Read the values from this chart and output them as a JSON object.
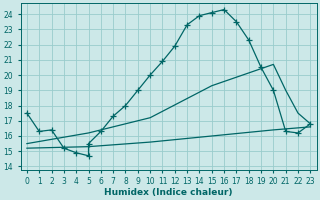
{
  "xlabel": "Humidex (Indice chaleur)",
  "bg_color": "#cce8e8",
  "grid_color": "#99cccc",
  "line_color": "#006666",
  "xlim": [
    -0.5,
    23.5
  ],
  "ylim": [
    13.8,
    24.7
  ],
  "yticks": [
    14,
    15,
    16,
    17,
    18,
    19,
    20,
    21,
    22,
    23,
    24
  ],
  "xticks": [
    0,
    1,
    2,
    3,
    4,
    5,
    6,
    7,
    8,
    9,
    10,
    11,
    12,
    13,
    14,
    15,
    16,
    17,
    18,
    19,
    20,
    21,
    22,
    23
  ],
  "curve1_x": [
    0,
    1,
    2,
    3,
    4,
    5,
    5,
    6,
    7,
    8,
    9,
    10,
    11,
    12,
    13,
    14,
    15,
    16,
    17,
    18,
    19,
    20,
    21,
    22,
    23
  ],
  "curve1_y": [
    17.5,
    16.3,
    16.4,
    15.2,
    14.9,
    14.7,
    15.5,
    16.3,
    17.3,
    18.0,
    19.0,
    20.0,
    20.9,
    21.9,
    23.3,
    23.9,
    24.1,
    24.3,
    23.5,
    22.3,
    20.5,
    19.0,
    16.3,
    16.2,
    16.8
  ],
  "curve2_x": [
    0,
    5,
    10,
    15,
    20,
    21,
    22,
    23
  ],
  "curve2_y": [
    15.5,
    16.2,
    17.2,
    19.3,
    20.7,
    19.0,
    17.5,
    16.8
  ],
  "curve3_x": [
    0,
    5,
    10,
    15,
    20,
    23
  ],
  "curve3_y": [
    15.2,
    15.3,
    15.6,
    16.0,
    16.4,
    16.6
  ]
}
